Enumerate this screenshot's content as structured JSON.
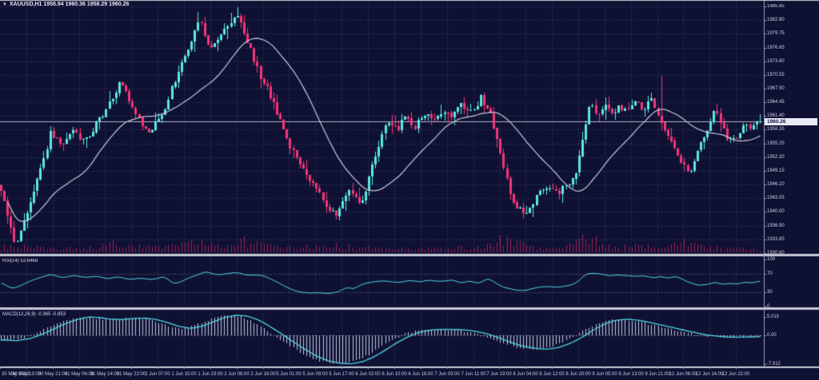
{
  "header": {
    "dropdown_icon": "▼",
    "symbol": "XAUUSD,H1",
    "ohlc_text": "1958.94 1960.36 1958.29 1960.26"
  },
  "colors": {
    "background": "#0f1133",
    "grid": "#3a3f63",
    "bull": "#5ce8e0",
    "bear": "#f43677",
    "ma_line": "#c7c9d8",
    "volume": "#a02057",
    "indicator_line": "#4fd8e6",
    "macd_histogram": "#c2c6da",
    "separator": "#c6c9d6",
    "axis_line": "#9aa0bc",
    "price_line": "#b4b8cc",
    "text": "#d4d7e8",
    "tag_bg": "#e8eaf4",
    "tag_text": "#10123a"
  },
  "chart_data": [
    {
      "type": "candlestick",
      "title": "XAUUSD,H1",
      "bars": 232,
      "ohlc_current": {
        "open": 1958.94,
        "high": 1960.36,
        "low": 1958.29,
        "close": 1960.26
      },
      "current_price": 1960.26,
      "ma_period": 24,
      "y_axis": {
        "labels": [
          "1985.85",
          "1982.80",
          "1979.75",
          "1976.65",
          "1973.60",
          "1970.55",
          "1967.50",
          "1964.45",
          "1961.40",
          "1958.35",
          "1955.25",
          "1952.20",
          "1949.15",
          "1946.10",
          "1943.05",
          "1940.00",
          "1936.90",
          "1933.85",
          "1930.80"
        ],
        "max": 1987.3,
        "min": 1929.4
      },
      "x_tick_labels": [
        "30 May 2023",
        "30 May 13:00",
        "30 May 21:00",
        "31 May 06:00",
        "31 May 14:00",
        "31 May 22:00",
        "1 Jun 07:00",
        "1 Jun 15:00",
        "1 Jun 23:00",
        "2 Jun 08:00",
        "2 Jun 16:00",
        "5 Jun 01:00",
        "5 Jun 09:00",
        "5 Jun 17:00",
        "6 Jun 02:00",
        "6 Jun 10:00",
        "6 Jun 18:00",
        "7 Jun 03:00",
        "7 Jun 11:00",
        "7 Jun 19:00",
        "8 Jun 04:00",
        "8 Jun 12:00",
        "8 Jun 20:00",
        "9 Jun 05:00",
        "9 Jun 13:00",
        "9 Jun 21:00",
        "12 Jun 06:00",
        "12 Jun 14:00",
        "12 Jun 22:00"
      ],
      "price_anchors": [
        [
          0,
          1944.5
        ],
        [
          0.008,
          1940
        ],
        [
          0.018,
          1932.2
        ],
        [
          0.03,
          1937.5
        ],
        [
          0.04,
          1943.5
        ],
        [
          0.055,
          1950.5
        ],
        [
          0.065,
          1957.5
        ],
        [
          0.08,
          1955
        ],
        [
          0.095,
          1958
        ],
        [
          0.11,
          1955.5
        ],
        [
          0.125,
          1959.5
        ],
        [
          0.14,
          1963.5
        ],
        [
          0.15,
          1966.5
        ],
        [
          0.158,
          1969.5
        ],
        [
          0.17,
          1964
        ],
        [
          0.185,
          1959.5
        ],
        [
          0.195,
          1957.5
        ],
        [
          0.205,
          1960.5
        ],
        [
          0.215,
          1963
        ],
        [
          0.228,
          1968.5
        ],
        [
          0.24,
          1974
        ],
        [
          0.252,
          1979
        ],
        [
          0.262,
          1982.5
        ],
        [
          0.27,
          1978.5
        ],
        [
          0.278,
          1976.5
        ],
        [
          0.288,
          1979.5
        ],
        [
          0.3,
          1982
        ],
        [
          0.312,
          1984.3
        ],
        [
          0.322,
          1979
        ],
        [
          0.33,
          1975.5
        ],
        [
          0.34,
          1971
        ],
        [
          0.352,
          1967
        ],
        [
          0.362,
          1963
        ],
        [
          0.372,
          1958
        ],
        [
          0.382,
          1954
        ],
        [
          0.392,
          1951.5
        ],
        [
          0.402,
          1948.5
        ],
        [
          0.412,
          1946
        ],
        [
          0.422,
          1943.5
        ],
        [
          0.432,
          1941
        ],
        [
          0.442,
          1939.2
        ],
        [
          0.45,
          1942
        ],
        [
          0.458,
          1945.5
        ],
        [
          0.466,
          1943
        ],
        [
          0.474,
          1941.5
        ],
        [
          0.482,
          1946
        ],
        [
          0.492,
          1952
        ],
        [
          0.502,
          1957.5
        ],
        [
          0.512,
          1960
        ],
        [
          0.522,
          1958.5
        ],
        [
          0.532,
          1961
        ],
        [
          0.545,
          1959
        ],
        [
          0.558,
          1962
        ],
        [
          0.57,
          1960.5
        ],
        [
          0.582,
          1963
        ],
        [
          0.595,
          1961.5
        ],
        [
          0.608,
          1964
        ],
        [
          0.62,
          1962
        ],
        [
          0.632,
          1965.5
        ],
        [
          0.642,
          1963
        ],
        [
          0.652,
          1958
        ],
        [
          0.662,
          1950
        ],
        [
          0.672,
          1943.5
        ],
        [
          0.682,
          1940.5
        ],
        [
          0.692,
          1939.5
        ],
        [
          0.702,
          1942.5
        ],
        [
          0.712,
          1944.5
        ],
        [
          0.722,
          1945.5
        ],
        [
          0.732,
          1944
        ],
        [
          0.742,
          1945.5
        ],
        [
          0.752,
          1946.5
        ],
        [
          0.76,
          1950
        ],
        [
          0.768,
          1958
        ],
        [
          0.776,
          1964.5
        ],
        [
          0.786,
          1962
        ],
        [
          0.796,
          1964
        ],
        [
          0.806,
          1961.5
        ],
        [
          0.816,
          1963.5
        ],
        [
          0.826,
          1962.5
        ],
        [
          0.836,
          1964.5
        ],
        [
          0.846,
          1963
        ],
        [
          0.856,
          1965
        ],
        [
          0.864,
          1962
        ],
        [
          0.872,
          1959
        ],
        [
          0.88,
          1956.5
        ],
        [
          0.89,
          1953.5
        ],
        [
          0.9,
          1950.5
        ],
        [
          0.908,
          1949
        ],
        [
          0.916,
          1952.5
        ],
        [
          0.924,
          1956
        ],
        [
          0.932,
          1959
        ],
        [
          0.94,
          1962.5
        ],
        [
          0.948,
          1960
        ],
        [
          0.956,
          1957
        ],
        [
          0.964,
          1955.5
        ],
        [
          0.972,
          1957.5
        ],
        [
          0.98,
          1959
        ],
        [
          0.988,
          1958.3
        ],
        [
          1,
          1960.26
        ]
      ],
      "wick_spikes": [
        [
          0.872,
          8.5
        ],
        [
          0.312,
          1.4
        ],
        [
          0.018,
          1.2
        ]
      ],
      "volume_anchors": [
        [
          0,
          7
        ],
        [
          0.02,
          11
        ],
        [
          0.04,
          8
        ],
        [
          0.07,
          7
        ],
        [
          0.1,
          6
        ],
        [
          0.13,
          9
        ],
        [
          0.15,
          15
        ],
        [
          0.17,
          10
        ],
        [
          0.2,
          8
        ],
        [
          0.23,
          11
        ],
        [
          0.26,
          17
        ],
        [
          0.28,
          12
        ],
        [
          0.3,
          14
        ],
        [
          0.312,
          22
        ],
        [
          0.33,
          15
        ],
        [
          0.36,
          10
        ],
        [
          0.38,
          8
        ],
        [
          0.41,
          9
        ],
        [
          0.44,
          12
        ],
        [
          0.46,
          9
        ],
        [
          0.48,
          7
        ],
        [
          0.5,
          6
        ],
        [
          0.53,
          5
        ],
        [
          0.56,
          6
        ],
        [
          0.6,
          7
        ],
        [
          0.63,
          9
        ],
        [
          0.65,
          12
        ],
        [
          0.665,
          24
        ],
        [
          0.68,
          14
        ],
        [
          0.7,
          8
        ],
        [
          0.72,
          6
        ],
        [
          0.74,
          7
        ],
        [
          0.76,
          18
        ],
        [
          0.775,
          26
        ],
        [
          0.79,
          13
        ],
        [
          0.81,
          8
        ],
        [
          0.83,
          9
        ],
        [
          0.85,
          10
        ],
        [
          0.865,
          13
        ],
        [
          0.88,
          9
        ],
        [
          0.9,
          17
        ],
        [
          0.92,
          12
        ],
        [
          0.94,
          9
        ],
        [
          0.96,
          8
        ],
        [
          0.98,
          6
        ],
        [
          1,
          5
        ]
      ]
    },
    {
      "type": "line",
      "name": "RSI",
      "label": "RSI(14) 53.6468",
      "axis_labels": [
        "100",
        "70",
        "30",
        "0"
      ],
      "levels": [
        70,
        30
      ],
      "range": [
        0,
        100
      ],
      "anchors": [
        [
          0,
          50
        ],
        [
          0.015,
          37
        ],
        [
          0.03,
          48
        ],
        [
          0.05,
          62
        ],
        [
          0.065,
          68
        ],
        [
          0.08,
          61
        ],
        [
          0.095,
          66
        ],
        [
          0.11,
          62
        ],
        [
          0.125,
          65
        ],
        [
          0.14,
          59
        ],
        [
          0.155,
          63
        ],
        [
          0.17,
          57
        ],
        [
          0.185,
          61
        ],
        [
          0.2,
          57
        ],
        [
          0.215,
          64
        ],
        [
          0.228,
          48
        ],
        [
          0.24,
          56
        ],
        [
          0.255,
          65
        ],
        [
          0.27,
          74
        ],
        [
          0.285,
          67
        ],
        [
          0.3,
          70
        ],
        [
          0.312,
          72
        ],
        [
          0.325,
          66
        ],
        [
          0.34,
          67
        ],
        [
          0.35,
          63
        ],
        [
          0.36,
          55
        ],
        [
          0.375,
          42
        ],
        [
          0.39,
          32
        ],
        [
          0.405,
          28
        ],
        [
          0.42,
          29
        ],
        [
          0.435,
          28
        ],
        [
          0.445,
          32
        ],
        [
          0.455,
          41
        ],
        [
          0.465,
          37
        ],
        [
          0.475,
          47
        ],
        [
          0.49,
          52
        ],
        [
          0.505,
          54
        ],
        [
          0.52,
          51
        ],
        [
          0.535,
          55
        ],
        [
          0.55,
          52
        ],
        [
          0.565,
          56
        ],
        [
          0.58,
          53
        ],
        [
          0.595,
          57
        ],
        [
          0.607,
          50
        ],
        [
          0.617,
          55
        ],
        [
          0.63,
          48
        ],
        [
          0.64,
          60
        ],
        [
          0.65,
          52
        ],
        [
          0.66,
          42
        ],
        [
          0.675,
          36
        ],
        [
          0.69,
          34
        ],
        [
          0.705,
          40
        ],
        [
          0.72,
          43
        ],
        [
          0.735,
          41
        ],
        [
          0.75,
          45
        ],
        [
          0.76,
          52
        ],
        [
          0.77,
          70
        ],
        [
          0.785,
          70
        ],
        [
          0.8,
          66
        ],
        [
          0.815,
          68
        ],
        [
          0.83,
          64
        ],
        [
          0.845,
          66
        ],
        [
          0.86,
          61
        ],
        [
          0.87,
          64
        ],
        [
          0.88,
          60
        ],
        [
          0.89,
          64
        ],
        [
          0.9,
          56
        ],
        [
          0.91,
          50
        ],
        [
          0.92,
          44
        ],
        [
          0.93,
          47
        ],
        [
          0.94,
          52
        ],
        [
          0.95,
          46
        ],
        [
          0.96,
          50
        ],
        [
          0.97,
          47
        ],
        [
          0.98,
          52
        ],
        [
          0.99,
          50
        ],
        [
          1,
          54
        ]
      ]
    },
    {
      "type": "macd",
      "name": "MACD",
      "label": "MACD(12,26,9) -0.365 -0.853",
      "axis_labels": [
        "5.015",
        "0.00",
        "-7.912"
      ],
      "values_current": [
        -0.365,
        -0.853
      ],
      "anchors": [
        [
          0,
          -1.2
        ],
        [
          0.02,
          -1.5
        ],
        [
          0.04,
          -0.8
        ],
        [
          0.06,
          0.8
        ],
        [
          0.08,
          2.8
        ],
        [
          0.1,
          4.3
        ],
        [
          0.115,
          5
        ],
        [
          0.13,
          4.8
        ],
        [
          0.145,
          4.4
        ],
        [
          0.16,
          4.3
        ],
        [
          0.175,
          4.6
        ],
        [
          0.19,
          4.7
        ],
        [
          0.205,
          4.3
        ],
        [
          0.22,
          3.4
        ],
        [
          0.235,
          2.4
        ],
        [
          0.25,
          1.9
        ],
        [
          0.265,
          2.5
        ],
        [
          0.28,
          3.7
        ],
        [
          0.295,
          4.9
        ],
        [
          0.31,
          5.5
        ],
        [
          0.325,
          5.2
        ],
        [
          0.34,
          4.1
        ],
        [
          0.355,
          2.3
        ],
        [
          0.37,
          0.3
        ],
        [
          0.385,
          -1.8
        ],
        [
          0.4,
          -3.8
        ],
        [
          0.415,
          -5.6
        ],
        [
          0.43,
          -6.9
        ],
        [
          0.445,
          -7.6
        ],
        [
          0.46,
          -7.8
        ],
        [
          0.475,
          -7.3
        ],
        [
          0.49,
          -6
        ],
        [
          0.505,
          -4.2
        ],
        [
          0.52,
          -2.2
        ],
        [
          0.535,
          -0.5
        ],
        [
          0.55,
          0.8
        ],
        [
          0.565,
          1.4
        ],
        [
          0.58,
          1.6
        ],
        [
          0.6,
          1.6
        ],
        [
          0.615,
          1.4
        ],
        [
          0.63,
          0.9
        ],
        [
          0.645,
          0.1
        ],
        [
          0.66,
          -1
        ],
        [
          0.675,
          -2.2
        ],
        [
          0.69,
          -3.1
        ],
        [
          0.705,
          -3.6
        ],
        [
          0.72,
          -3.8
        ],
        [
          0.735,
          -3.3
        ],
        [
          0.75,
          -2.2
        ],
        [
          0.765,
          -0.6
        ],
        [
          0.78,
          1.4
        ],
        [
          0.795,
          3.1
        ],
        [
          0.81,
          4.1
        ],
        [
          0.825,
          4.4
        ],
        [
          0.84,
          4.1
        ],
        [
          0.855,
          3.5
        ],
        [
          0.87,
          2.8
        ],
        [
          0.885,
          2.1
        ],
        [
          0.9,
          1.4
        ],
        [
          0.915,
          0.7
        ],
        [
          0.93,
          0.1
        ],
        [
          0.945,
          -0.3
        ],
        [
          0.96,
          -0.5
        ],
        [
          0.975,
          -0.5
        ],
        [
          0.99,
          -0.42
        ],
        [
          1,
          -0.37
        ]
      ]
    }
  ]
}
